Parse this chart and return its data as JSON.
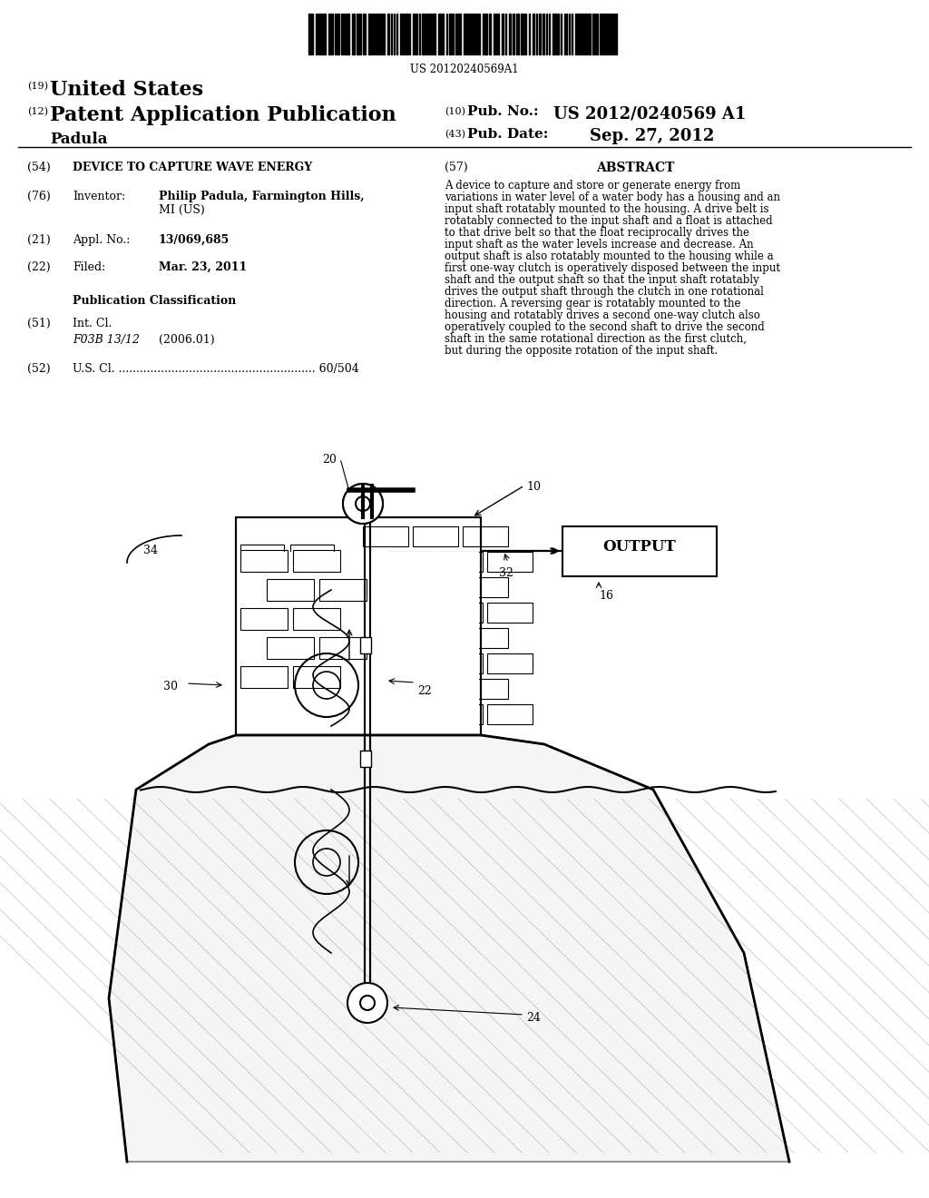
{
  "bg_color": "#ffffff",
  "barcode_text": "US 20120240569A1",
  "label_19": "(19)",
  "united_states": "United States",
  "label_12": "(12)",
  "patent_app_pub": "Patent Application Publication",
  "inventor_name": "Padula",
  "label_10": "(10)",
  "pub_no_label": "Pub. No.:",
  "pub_no_value": "US 2012/0240569 A1",
  "label_43": "(43)",
  "pub_date_label": "Pub. Date:",
  "pub_date_value": "Sep. 27, 2012",
  "label_54": "(54)",
  "title_54": "DEVICE TO CAPTURE WAVE ENERGY",
  "label_76": "(76)",
  "inventor_label": "Inventor:",
  "inventor_value_1": "Philip Padula, Farmington Hills,",
  "inventor_value_2": "MI (US)",
  "label_21": "(21)",
  "appl_label": "Appl. No.:",
  "appl_value": "13/069,685",
  "label_22": "(22)",
  "filed_label": "Filed:",
  "filed_value": "Mar. 23, 2011",
  "pub_class_header": "Publication Classification",
  "label_51": "(51)",
  "int_cl_label": "Int. Cl.",
  "int_cl_value": "F03B 13/12",
  "int_cl_year": "(2006.01)",
  "label_52": "(52)",
  "us_cl_label": "U.S. Cl. ........................................................",
  "us_cl_value": "60/504",
  "label_57": "(57)",
  "abstract_header": "ABSTRACT",
  "abstract_text": "A device to capture and store or generate energy from variations in water level of a water body has a housing and an input shaft rotatably mounted to the housing. A drive belt is rotatably connected to the input shaft and a float is attached to that drive belt so that the float reciprocally drives the input shaft as the water levels increase and decrease. An output shaft is also rotatably mounted to the housing while a first one-way clutch is operatively disposed between the input shaft and the output shaft so that the input shaft rotatably drives the output shaft through the clutch in one rotational direction. A reversing gear is rotatably mounted to the housing and rotatably drives a second one-way clutch also operatively coupled to the second shaft to drive the second shaft in the same rotational direction as the first clutch, but during the opposite rotation of the input shaft."
}
